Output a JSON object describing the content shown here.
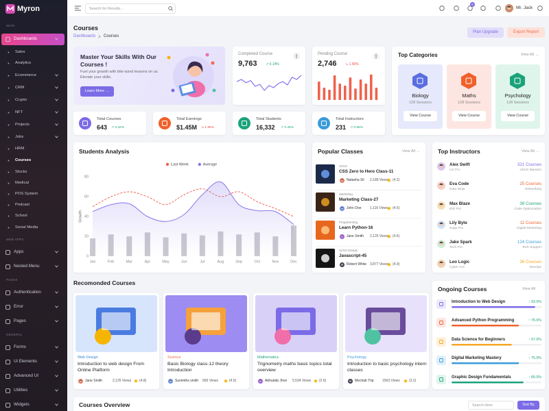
{
  "sidebar": {
    "logo": "Myron",
    "sections": [
      {
        "title": "MAIN",
        "items": [
          "Dashboards",
          "Sales",
          "Analytics",
          "Ecommerce",
          "CRM",
          "Crypto",
          "NFT",
          "Projects",
          "Jobs",
          "HRM",
          "Courses",
          "Stocks",
          "Medical",
          "POS System",
          "Podcast",
          "School",
          "Social Media"
        ]
      },
      {
        "title": "WEB APPS",
        "items": [
          "Apps",
          "Nested Menu"
        ]
      },
      {
        "title": "PAGES",
        "items": [
          "Authentication",
          "Error",
          "Pages"
        ]
      },
      {
        "title": "GENERAL",
        "items": [
          "Forms",
          "Ui Elements",
          "Advanced UI",
          "Utilities",
          "Widgets"
        ]
      }
    ]
  },
  "topbar": {
    "search_placeholder": "Search for Results...",
    "cart_badge": "6",
    "user": "Mr. Jack"
  },
  "header": {
    "title": "Courses",
    "breadcrumb": [
      "Dashboards",
      "Courses"
    ],
    "buttons": [
      "Plan Upgrade",
      "Export Report"
    ]
  },
  "hero": {
    "title": "Master Your Skills With Our Courses !",
    "text": "Fuel your growth with bite-sized lessons on us. Elevate your skills.",
    "button": "Learn More →"
  },
  "completed": {
    "title": "Completed Course",
    "value": "9,763",
    "change": "↗ 0.14%",
    "sparkline": [
      62,
      70,
      58,
      66,
      45,
      52,
      30,
      48,
      40,
      55,
      62,
      50,
      78,
      70,
      85
    ]
  },
  "pending": {
    "title": "Pending Course",
    "value": "2,746",
    "change": "↘ 1.56%",
    "bars": [
      45,
      30,
      25,
      60,
      40,
      35,
      55,
      28,
      50,
      40,
      62,
      30
    ]
  },
  "stats": [
    {
      "title": "Total Courses",
      "value": "643",
      "change": "↗ 3.32%"
    },
    {
      "title": "Total Earnings",
      "value": "$1.45M",
      "change": "↘ 1.95%"
    },
    {
      "title": "Total Students",
      "value": "16,332",
      "change": "↗ 2.45%"
    },
    {
      "title": "Total Instructors",
      "value": "231",
      "change": "↗ 0.96%"
    }
  ],
  "top_categories": {
    "title": "Top Categories",
    "view_all": "View All →",
    "items": [
      {
        "name": "Biology",
        "sessions": "128 Sessions",
        "button": "View Course"
      },
      {
        "name": "Maths",
        "sessions": "128 Sessions",
        "button": "View Course"
      },
      {
        "name": "Psychology",
        "sessions": "128 Sessions",
        "button": "View Course"
      }
    ]
  },
  "chart_data": {
    "type": "line",
    "title": "Students Analysis",
    "ylabel": "Growth",
    "categories": [
      "Jan",
      "Feb",
      "Mar",
      "Apr",
      "May",
      "Jun",
      "Jul",
      "Aug",
      "Sep",
      "Oct",
      "Nov",
      "Dec"
    ],
    "series": [
      {
        "name": "Last Week",
        "color": "#f0614d",
        "style": "dashed",
        "values": [
          50,
          60,
          65,
          60,
          52,
          62,
          68,
          60,
          65,
          55,
          48,
          40
        ]
      },
      {
        "name": "Average",
        "color": "#8576ea",
        "values": [
          45,
          52,
          53,
          40,
          35,
          42,
          62,
          75,
          52,
          46,
          45,
          32
        ]
      },
      {
        "type": "bar",
        "color": "#c9c9cf",
        "values": [
          18,
          22,
          20,
          24,
          19,
          23,
          21,
          25,
          22,
          24,
          20,
          31
        ]
      }
    ],
    "ylim": [
      0,
      85
    ],
    "yticks": [
      0,
      20,
      40,
      60,
      80
    ]
  },
  "popular_classes": {
    "title": "Popular Classes",
    "view_all": "View All →",
    "items": [
      {
        "tag": "UI/UX",
        "title": "CSS Zero to Hero Class-11",
        "author": "Natasha Sil",
        "views": "2,189 Views",
        "rating": "(4.2)"
      },
      {
        "tag": "Marketing",
        "title": "Marketing Class-27",
        "author": "John Doe",
        "views": "1,116 Views",
        "rating": "(4.5)"
      },
      {
        "tag": "Programming",
        "title": "Learn Python-16",
        "author": "Jane Smith",
        "views": "2,125 Views",
        "rating": "(4.6)"
      },
      {
        "tag": "UI/UX Design",
        "title": "Javascript-45",
        "author": "Robert White",
        "views": "3,877 Views",
        "rating": "(4.9)"
      }
    ]
  },
  "top_instructors": {
    "title": "Top Instructors",
    "view_all": "View All →",
    "items": [
      {
        "name": "Alex Swift",
        "role": "UX Pro",
        "courses": "321 Courses",
        "specialty": "UI/UX Maestro"
      },
      {
        "name": "Eva Code",
        "role": "Data Ninja",
        "courses": "25 Courses",
        "specialty": "Networking"
      },
      {
        "name": "Max Blaze",
        "role": "Ethi Pro",
        "courses": "39 Courses",
        "specialty": "Code Optimization"
      },
      {
        "name": "Lily Byte",
        "role": "Supp Pro",
        "courses": "11 Courses",
        "specialty": "Digital Marketing"
      },
      {
        "name": "Jake Spark",
        "role": "Tech Pro",
        "courses": "124 Courses",
        "specialty": "Tech Support"
      },
      {
        "name": "Leo Logic",
        "role": "Cyber Ace",
        "courses": "36 Courses",
        "specialty": "DevOps"
      }
    ]
  },
  "recommended": {
    "title": "Recomonded Courses",
    "items": [
      {
        "category": "Web Design",
        "title": "Introduction to web design From Online Platform",
        "author": "Jane Smith",
        "views": "2,125 Views",
        "rating": "(4.8)"
      },
      {
        "category": "Science",
        "title": "Basic Biology class-12 theory Introduction",
        "author": "Sunimths smith",
        "views": "565 Views",
        "rating": "(4.5)"
      },
      {
        "category": "Mathematics",
        "title": "Trignometry maths basic topics total overview",
        "author": "Abhudab Jhon",
        "views": "5,534 Views",
        "rating": "(2.6)"
      },
      {
        "category": "Psychology",
        "title": "Introduction to basic psychology intern classes",
        "author": "Mechab Trip",
        "views": "1563 Views",
        "rating": "(3.2)"
      }
    ]
  },
  "ongoing": {
    "title": "Ongoing Courses",
    "view_all": "View All",
    "items": [
      {
        "title": "Introduction to Web Design",
        "progress": 93.0,
        "progress_label": "↑ 93.0%"
      },
      {
        "title": "Advanced Python Programming",
        "progress": 75.0,
        "progress_label": "↑ 75.0%"
      },
      {
        "title": "Data Science for Beginners",
        "progress": 67.0,
        "progress_label": "↑ 67.0%"
      },
      {
        "title": "Digital Marketing Mastery",
        "progress": 75.0,
        "progress_label": "↑ 75.0%"
      },
      {
        "title": "Graphic Design Fundamentals",
        "progress": 80.0,
        "progress_label": "↑ 80.0%"
      }
    ]
  },
  "overview": {
    "title": "Courses Overview",
    "search_placeholder": "Search Here",
    "sort_button": "Sort By"
  }
}
